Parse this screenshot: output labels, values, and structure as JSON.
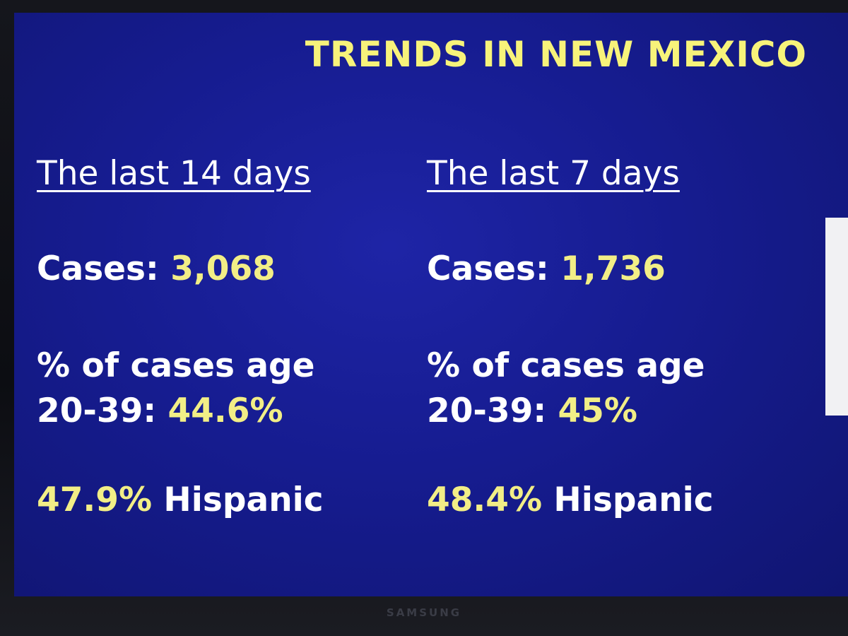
{
  "title": "TRENDS IN NEW MEXICO",
  "columns": [
    {
      "heading": "The last 14 days",
      "cases_label": "Cases: ",
      "cases_value": "3,068",
      "age_line1": "% of cases age",
      "age_label": "20-39: ",
      "age_value": "44.6%",
      "hispanic_value": "47.9%",
      "hispanic_label": " Hispanic"
    },
    {
      "heading": "The last 7 days",
      "cases_label": "Cases: ",
      "cases_value": "1,736",
      "age_line1": "% of cases age",
      "age_label": "20-39: ",
      "age_value": "45%",
      "hispanic_value": "48.4%",
      "hispanic_label": " Hispanic"
    }
  ],
  "tv_brand": "SAMSUNG",
  "colors": {
    "background": "#161c90",
    "title": "#f7f37a",
    "highlight": "#f2ee86",
    "text": "#ffffff"
  }
}
